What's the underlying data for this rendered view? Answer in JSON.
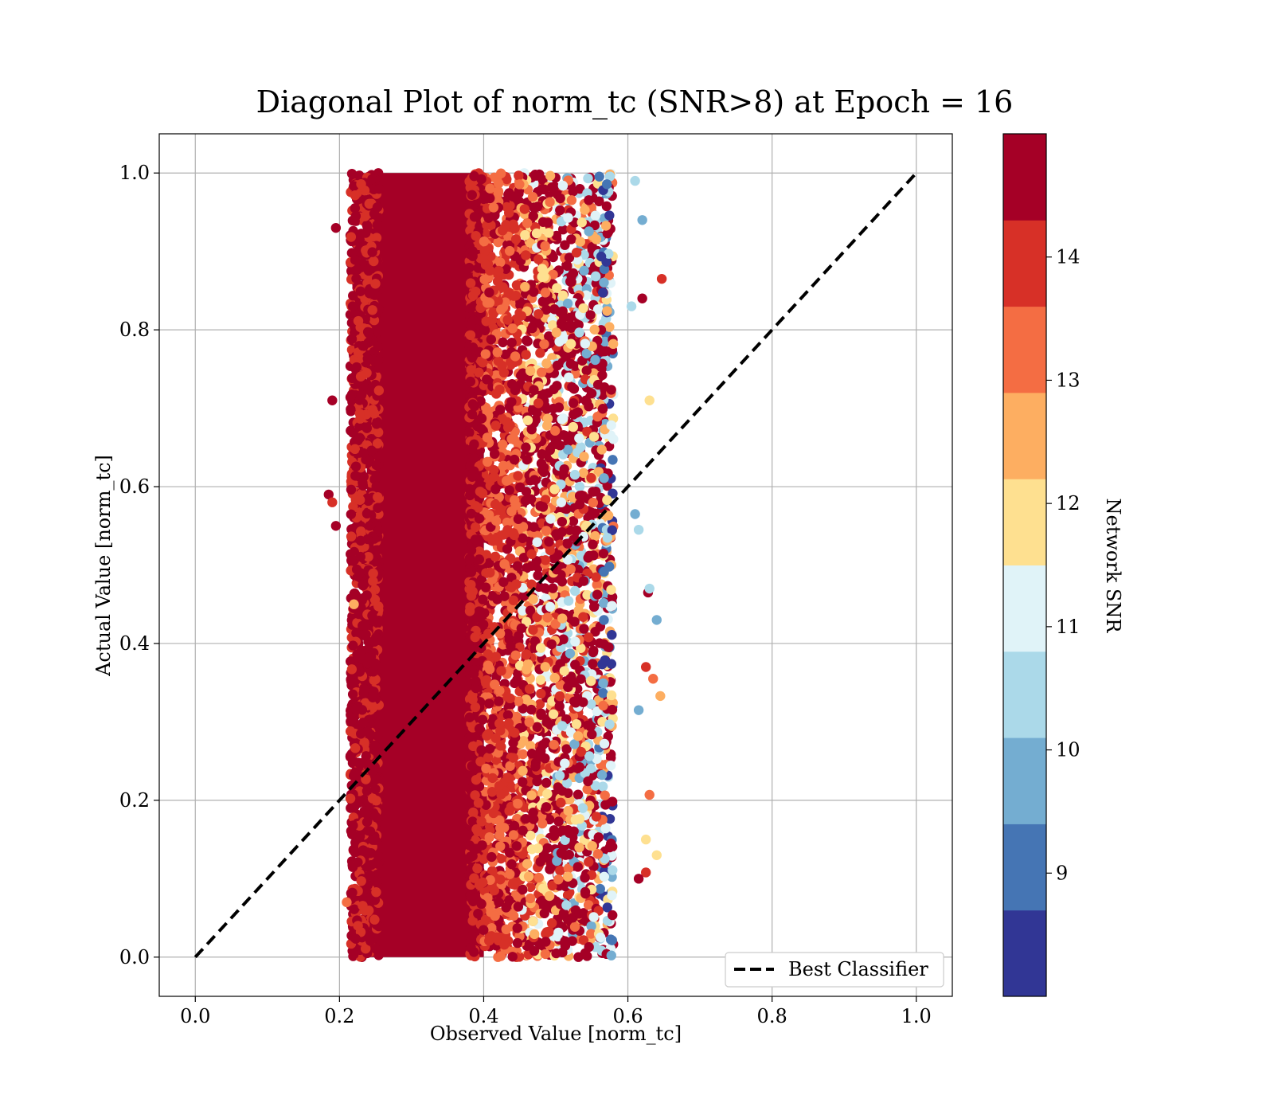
{
  "chart_data": {
    "type": "scatter",
    "title": "Diagonal Plot of norm_tc (SNR>8) at Epoch = 16",
    "xlabel": "Observed Value [norm_tc]",
    "ylabel": "Actual Value [norm_tc]",
    "xlim": [
      -0.05,
      1.05
    ],
    "ylim": [
      -0.05,
      1.05
    ],
    "xticks": [
      "0.0",
      "0.2",
      "0.4",
      "0.6",
      "0.8",
      "1.0"
    ],
    "yticks": [
      "0.0",
      "0.2",
      "0.4",
      "0.6",
      "0.8",
      "1.0"
    ],
    "grid": true,
    "legend": {
      "placement": "lower-right",
      "entries": [
        "Best Classifier"
      ]
    },
    "diagonal": {
      "name": "Best Classifier",
      "x": [
        0.0,
        1.0
      ],
      "y": [
        0.0,
        1.0
      ],
      "style": "dashed",
      "color": "#000000"
    },
    "colorbar": {
      "label": "Network SNR",
      "range": [
        8,
        15
      ],
      "ticks": [
        "9",
        "10",
        "11",
        "12",
        "13",
        "14"
      ],
      "tick_values": [
        9,
        10,
        11,
        12,
        13,
        14
      ],
      "bins": [
        8,
        8.7,
        9.4,
        10.1,
        10.8,
        11.5,
        12.2,
        12.9,
        13.6,
        14.3,
        15
      ],
      "colors": [
        "#313695",
        "#4575b4",
        "#74add1",
        "#abd9e9",
        "#e0f3f8",
        "#fee090",
        "#fdae61",
        "#f46d43",
        "#d73027",
        "#a50026"
      ]
    },
    "cloud": {
      "x_range": [
        0.2,
        0.62
      ],
      "y_range": [
        0.0,
        1.0
      ],
      "dense_core_x": [
        0.23,
        0.4
      ],
      "description_bands": [
        {
          "x_from": 0.23,
          "x_to": 0.4,
          "snr": 14.6
        },
        {
          "x_from": 0.4,
          "x_to": 0.5,
          "snr": 13.9
        },
        {
          "x_from": 0.5,
          "x_to": 0.56,
          "snr": 12.4
        },
        {
          "x_from": 0.56,
          "x_to": 0.62,
          "snr": 10.5
        }
      ]
    },
    "outliers": [
      {
        "x": 0.185,
        "y": 0.59,
        "snr": 14.6
      },
      {
        "x": 0.19,
        "y": 0.58,
        "snr": 14.0
      },
      {
        "x": 0.195,
        "y": 0.55,
        "snr": 14.6
      },
      {
        "x": 0.195,
        "y": 0.93,
        "snr": 14.6
      },
      {
        "x": 0.19,
        "y": 0.71,
        "snr": 14.6
      },
      {
        "x": 0.21,
        "y": 0.07,
        "snr": 13.3
      },
      {
        "x": 0.22,
        "y": 0.45,
        "snr": 12.4
      },
      {
        "x": 0.62,
        "y": 0.94,
        "snr": 9.4
      },
      {
        "x": 0.61,
        "y": 0.99,
        "snr": 10.1
      },
      {
        "x": 0.647,
        "y": 0.865,
        "snr": 14.0
      },
      {
        "x": 0.62,
        "y": 0.84,
        "snr": 14.3
      },
      {
        "x": 0.605,
        "y": 0.83,
        "snr": 10.1
      },
      {
        "x": 0.63,
        "y": 0.71,
        "snr": 11.5
      },
      {
        "x": 0.64,
        "y": 0.43,
        "snr": 9.4
      },
      {
        "x": 0.628,
        "y": 0.465,
        "snr": 14.6
      },
      {
        "x": 0.63,
        "y": 0.47,
        "snr": 10.1
      },
      {
        "x": 0.625,
        "y": 0.37,
        "snr": 14.0
      },
      {
        "x": 0.635,
        "y": 0.355,
        "snr": 13.3
      },
      {
        "x": 0.645,
        "y": 0.333,
        "snr": 12.4
      },
      {
        "x": 0.615,
        "y": 0.315,
        "snr": 9.4
      },
      {
        "x": 0.63,
        "y": 0.207,
        "snr": 13.3
      },
      {
        "x": 0.625,
        "y": 0.15,
        "snr": 11.5
      },
      {
        "x": 0.64,
        "y": 0.13,
        "snr": 11.5
      },
      {
        "x": 0.625,
        "y": 0.108,
        "snr": 14.0
      },
      {
        "x": 0.615,
        "y": 0.1,
        "snr": 14.6
      },
      {
        "x": 0.61,
        "y": 0.565,
        "snr": 9.4
      },
      {
        "x": 0.615,
        "y": 0.545,
        "snr": 10.1
      }
    ]
  }
}
